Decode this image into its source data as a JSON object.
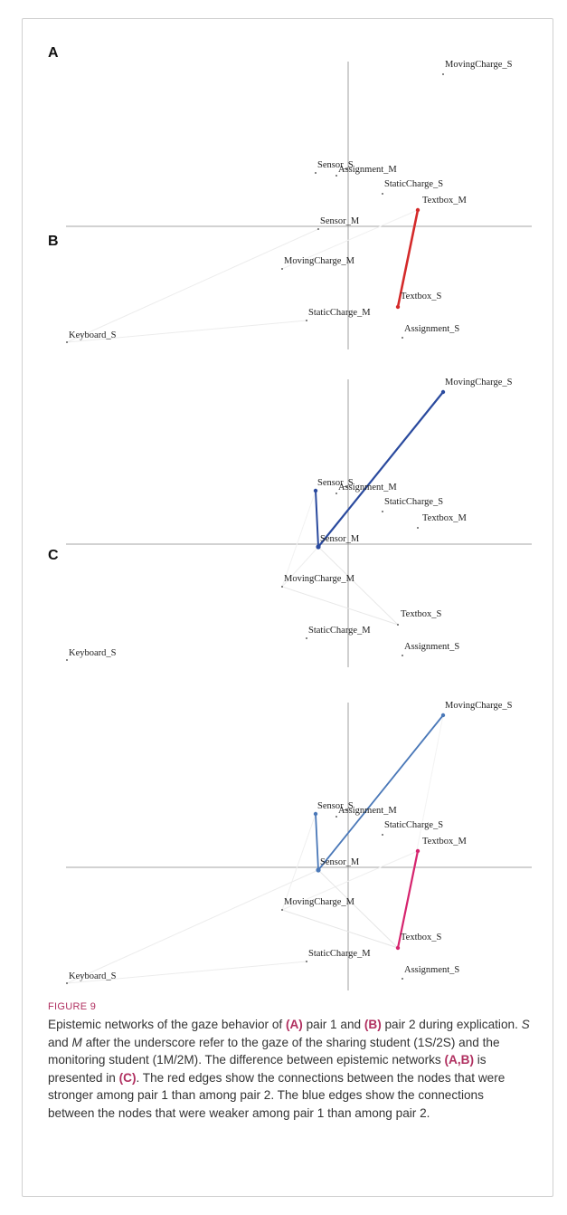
{
  "panels": [
    "A",
    "B",
    "C"
  ],
  "nodes": [
    {
      "id": "MovingCharge_S",
      "label": "MovingCharge_S"
    },
    {
      "id": "Sensor_S",
      "label": "Sensor_S"
    },
    {
      "id": "Assignment_M",
      "label": "Assignment_M"
    },
    {
      "id": "StaticCharge_S",
      "label": "StaticCharge_S"
    },
    {
      "id": "Textbox_M",
      "label": "Textbox_M"
    },
    {
      "id": "Sensor_M",
      "label": "Sensor_M"
    },
    {
      "id": "MovingCharge_M",
      "label": "MovingCharge_M"
    },
    {
      "id": "Textbox_S",
      "label": "Textbox_S"
    },
    {
      "id": "StaticCharge_M",
      "label": "StaticCharge_M"
    },
    {
      "id": "Assignment_S",
      "label": "Assignment_S"
    },
    {
      "id": "Keyboard_S",
      "label": "Keyboard_S"
    }
  ],
  "networks": [
    {
      "panel": "A",
      "edges": [
        {
          "from": "Textbox_M",
          "to": "Textbox_S",
          "color": "#d42a2a",
          "width": 2.6
        },
        {
          "from": "Keyboard_S",
          "to": "Sensor_M",
          "color": "#ececec",
          "width": 1
        },
        {
          "from": "Keyboard_S",
          "to": "StaticCharge_M",
          "color": "#ececec",
          "width": 1
        },
        {
          "from": "MovingCharge_M",
          "to": "Textbox_M",
          "color": "#f0f0f0",
          "width": 1
        }
      ]
    },
    {
      "panel": "B",
      "edges": [
        {
          "from": "Sensor_M",
          "to": "MovingCharge_S",
          "color": "#2a4a9e",
          "width": 2.2
        },
        {
          "from": "Sensor_M",
          "to": "Sensor_S",
          "color": "#2a4a9e",
          "width": 2
        },
        {
          "from": "Sensor_M",
          "to": "Textbox_S",
          "color": "#e8e8e8",
          "width": 1
        },
        {
          "from": "MovingCharge_M",
          "to": "Textbox_S",
          "color": "#e8e8e8",
          "width": 1
        },
        {
          "from": "MovingCharge_M",
          "to": "Sensor_M",
          "color": "#eeeeee",
          "width": 1
        },
        {
          "from": "Sensor_S",
          "to": "MovingCharge_M",
          "color": "#f2f2f2",
          "width": 1
        }
      ]
    },
    {
      "panel": "C",
      "edges": [
        {
          "from": "Sensor_M",
          "to": "MovingCharge_S",
          "color": "#4a78b8",
          "width": 1.8
        },
        {
          "from": "Sensor_M",
          "to": "Sensor_S",
          "color": "#4a78b8",
          "width": 1.8
        },
        {
          "from": "Textbox_M",
          "to": "Textbox_S",
          "color": "#d6246e",
          "width": 2.2
        },
        {
          "from": "Keyboard_S",
          "to": "Sensor_M",
          "color": "#ececec",
          "width": 1
        },
        {
          "from": "Keyboard_S",
          "to": "StaticCharge_M",
          "color": "#ececec",
          "width": 1
        },
        {
          "from": "MovingCharge_M",
          "to": "Textbox_S",
          "color": "#e6e6e6",
          "width": 1
        },
        {
          "from": "MovingCharge_M",
          "to": "Textbox_M",
          "color": "#efefef",
          "width": 1
        },
        {
          "from": "Sensor_M",
          "to": "Textbox_S",
          "color": "#e6e6e6",
          "width": 1
        },
        {
          "from": "Sensor_S",
          "to": "MovingCharge_M",
          "color": "#efefef",
          "width": 1
        },
        {
          "from": "MovingCharge_S",
          "to": "Textbox_S",
          "color": "#f3f3f3",
          "width": 1
        }
      ]
    }
  ],
  "caption": {
    "tag": "FIGURE 9",
    "text_html": "Epistemic networks of the gaze behavior of <b>(A)</b> pair 1 and <b>(B)</b> pair 2 during explication. <i>S</i> and <i>M</i> after the underscore refer to the gaze of the sharing student (1S/2S) and the monitoring student (1M/2M). The difference between epistemic networks <b>(A,B)</b> is presented in <b>(C)</b>. The red edges show the connections between the nodes that were stronger among pair 1 than among pair 2. The blue edges show the connections between the nodes that were weaker among pair 1 than among pair 2."
  }
}
